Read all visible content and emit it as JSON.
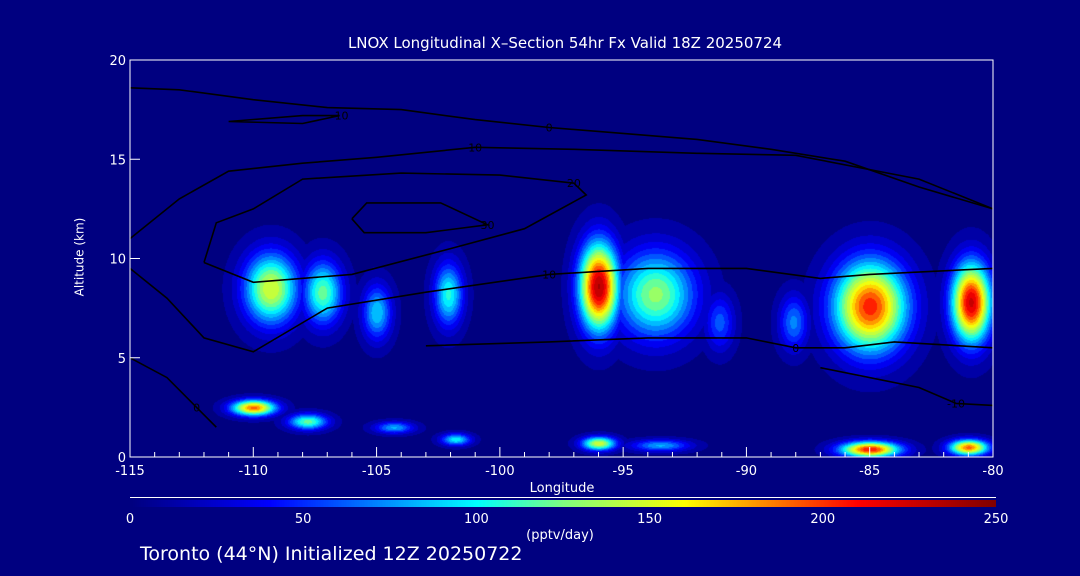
{
  "chart_data": {
    "type": "heatmap",
    "title": "LNOX Longitudinal X–Section 54hr  Fx Valid 18Z 20250724",
    "xlabel": "Longitude",
    "ylabel": "Altitude (km)",
    "xlim": [
      -115,
      -80
    ],
    "ylim": [
      0,
      20
    ],
    "xticks": [
      "-115",
      "-110",
      "-105",
      "-100",
      "-95",
      "-90",
      "-85",
      "-80"
    ],
    "xtick_values": [
      -115,
      -110,
      -105,
      -100,
      -95,
      -90,
      -85,
      -80
    ],
    "yticks": [
      "0",
      "5",
      "10",
      "15",
      "20"
    ],
    "ytick_values": [
      0,
      5,
      10,
      15,
      20
    ],
    "colorbar": {
      "range": [
        0,
        250
      ],
      "ticks": [
        "0",
        "50",
        "100",
        "150",
        "200",
        "250"
      ],
      "tick_values": [
        0,
        50,
        100,
        150,
        200,
        250
      ],
      "units": "(pptv/day)",
      "colormap": [
        [
          0,
          "#000080"
        ],
        [
          40,
          "#0000ff"
        ],
        [
          100,
          "#00ffff"
        ],
        [
          125,
          "#80ff80"
        ],
        [
          160,
          "#ffff00"
        ],
        [
          210,
          "#ff0000"
        ],
        [
          250,
          "#800000"
        ]
      ]
    },
    "lnox_maxima": [
      {
        "lon": -109.3,
        "alt": 8.5,
        "value": 150,
        "slon": 1.1,
        "salt": 1.8
      },
      {
        "lon": -107.2,
        "alt": 8.3,
        "value": 120,
        "slon": 0.8,
        "salt": 1.6
      },
      {
        "lon": -105.0,
        "alt": 7.3,
        "value": 90,
        "slon": 0.6,
        "salt": 1.4
      },
      {
        "lon": -102.1,
        "alt": 8.2,
        "value": 105,
        "slon": 0.6,
        "salt": 1.6
      },
      {
        "lon": -96.0,
        "alt": 8.6,
        "value": 235,
        "slon": 0.8,
        "salt": 2.2
      },
      {
        "lon": -93.7,
        "alt": 8.2,
        "value": 130,
        "slon": 1.6,
        "salt": 2.2
      },
      {
        "lon": -91.1,
        "alt": 6.8,
        "value": 60,
        "slon": 0.6,
        "salt": 1.4
      },
      {
        "lon": -88.1,
        "alt": 6.8,
        "value": 70,
        "slon": 0.6,
        "salt": 1.4
      },
      {
        "lon": -85.0,
        "alt": 7.6,
        "value": 205,
        "slon": 1.5,
        "salt": 2.3
      },
      {
        "lon": -80.9,
        "alt": 7.8,
        "value": 225,
        "slon": 0.8,
        "salt": 2.0
      },
      {
        "lon": -110.0,
        "alt": 2.5,
        "value": 190,
        "slon": 0.9,
        "salt": 0.4
      },
      {
        "lon": -107.8,
        "alt": 1.8,
        "value": 120,
        "slon": 0.8,
        "salt": 0.4
      },
      {
        "lon": -104.3,
        "alt": 1.5,
        "value": 80,
        "slon": 0.8,
        "salt": 0.3
      },
      {
        "lon": -101.8,
        "alt": 0.9,
        "value": 100,
        "slon": 0.6,
        "salt": 0.3
      },
      {
        "lon": -96.0,
        "alt": 0.7,
        "value": 150,
        "slon": 0.7,
        "salt": 0.35
      },
      {
        "lon": -93.5,
        "alt": 0.6,
        "value": 80,
        "slon": 1.2,
        "salt": 0.3
      },
      {
        "lon": -85.0,
        "alt": 0.4,
        "value": 210,
        "slon": 1.2,
        "salt": 0.4
      },
      {
        "lon": -81.0,
        "alt": 0.5,
        "value": 190,
        "slon": 0.8,
        "salt": 0.4
      }
    ],
    "contours": [
      {
        "label": "0",
        "points": [
          [
            -115,
            18.6
          ],
          [
            -113,
            18.5
          ],
          [
            -110,
            18
          ],
          [
            -107,
            17.6
          ],
          [
            -104,
            17.5
          ],
          [
            -101,
            17
          ],
          [
            -98,
            16.6
          ],
          [
            -95,
            16.3
          ],
          [
            -92,
            16
          ],
          [
            -89,
            15.5
          ],
          [
            -86,
            14.9
          ],
          [
            -83,
            13.6
          ],
          [
            -80,
            12.5
          ]
        ]
      },
      {
        "label": "-10",
        "points": [
          [
            -111,
            16.9
          ],
          [
            -108,
            17.2
          ],
          [
            -106.5,
            17.2
          ],
          [
            -108,
            16.8
          ],
          [
            -111,
            16.9
          ]
        ]
      },
      {
        "label": "10",
        "points": [
          [
            -115,
            11
          ],
          [
            -113,
            13
          ],
          [
            -111,
            14.4
          ],
          [
            -108,
            14.8
          ],
          [
            -105,
            15.1
          ],
          [
            -101,
            15.6
          ],
          [
            -97,
            15.5
          ],
          [
            -92,
            15.3
          ],
          [
            -88,
            15.2
          ],
          [
            -83,
            14
          ],
          [
            -80,
            12.5
          ]
        ]
      },
      {
        "label": "20",
        "points": [
          [
            -112,
            9.8
          ],
          [
            -111.5,
            11.8
          ],
          [
            -110,
            12.5
          ],
          [
            -108,
            14
          ],
          [
            -104,
            14.3
          ],
          [
            -100,
            14.2
          ],
          [
            -97,
            13.8
          ],
          [
            -96.5,
            13.2
          ],
          [
            -99,
            11.5
          ],
          [
            -102,
            10.5
          ],
          [
            -106,
            9.2
          ],
          [
            -110,
            8.8
          ],
          [
            -112,
            9.8
          ]
        ]
      },
      {
        "label": "30",
        "points": [
          [
            -106,
            12
          ],
          [
            -105.4,
            12.8
          ],
          [
            -102.4,
            12.8
          ],
          [
            -100.5,
            11.7
          ],
          [
            -103,
            11.3
          ],
          [
            -105.5,
            11.3
          ],
          [
            -106,
            12
          ]
        ]
      },
      {
        "label": "10",
        "points": [
          [
            -115,
            9.5
          ],
          [
            -113.5,
            8
          ],
          [
            -112,
            6
          ],
          [
            -110,
            5.3
          ],
          [
            -107,
            7.5
          ],
          [
            -103,
            8.3
          ],
          [
            -98,
            9.2
          ],
          [
            -94,
            9.5
          ],
          [
            -90,
            9.5
          ],
          [
            -87,
            9
          ],
          [
            -85,
            9.2
          ],
          [
            -80,
            9.5
          ]
        ]
      },
      {
        "label": "0",
        "points": [
          [
            -115,
            5
          ],
          [
            -113.5,
            4
          ],
          [
            -112.3,
            2.5
          ],
          [
            -111.5,
            1.5
          ]
        ]
      },
      {
        "label": "0",
        "points": [
          [
            -103,
            5.6
          ],
          [
            -98,
            5.8
          ],
          [
            -94,
            6
          ],
          [
            -90,
            6
          ],
          [
            -88,
            5.5
          ],
          [
            -86,
            5.5
          ],
          [
            -84,
            5.8
          ],
          [
            -80,
            5.5
          ]
        ]
      },
      {
        "label": "-10",
        "points": [
          [
            -87,
            4.5
          ],
          [
            -83,
            3.5
          ],
          [
            -81.5,
            2.7
          ],
          [
            -80,
            2.6
          ]
        ]
      }
    ]
  },
  "footer": "Toronto (44°N) Initialized 12Z 20250722"
}
